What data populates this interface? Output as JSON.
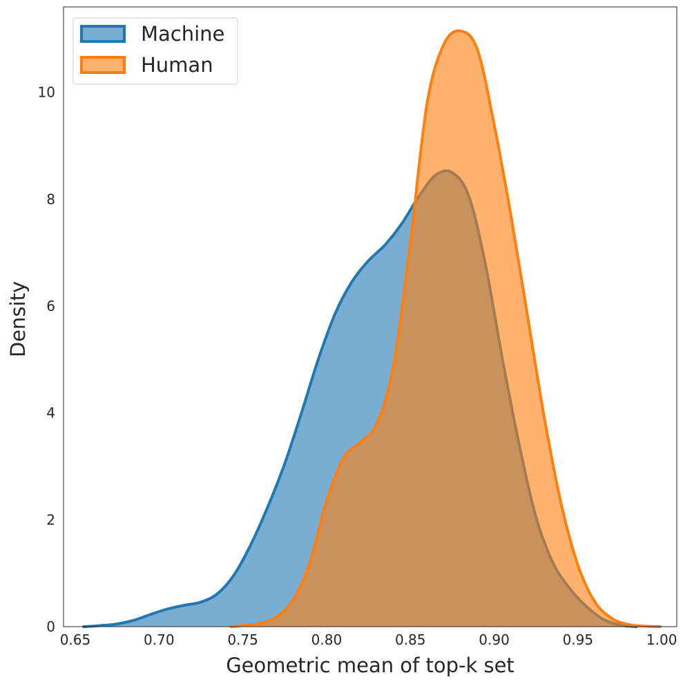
{
  "chart_data": {
    "type": "area",
    "title": "",
    "xlabel": "Geometric mean of top-k set",
    "ylabel": "Density",
    "xlim": [
      0.643,
      1.009
    ],
    "ylim": [
      0,
      11.6
    ],
    "xticks": [
      0.65,
      0.7,
      0.75,
      0.8,
      0.85,
      0.9,
      0.95,
      1.0
    ],
    "xtick_labels": [
      "0.65",
      "0.70",
      "0.75",
      "0.80",
      "0.85",
      "0.90",
      "0.95",
      "1.00"
    ],
    "yticks": [
      0,
      2,
      4,
      6,
      8,
      10
    ],
    "ytick_labels": [
      "0",
      "2",
      "4",
      "6",
      "8",
      "10"
    ],
    "grid": false,
    "legend_position": "top-left",
    "series": [
      {
        "name": "Machine",
        "color": "#1f77b4",
        "fill_opacity": 0.6,
        "x": [
          0.655,
          0.665,
          0.675,
          0.685,
          0.695,
          0.705,
          0.715,
          0.725,
          0.735,
          0.745,
          0.755,
          0.765,
          0.775,
          0.785,
          0.795,
          0.805,
          0.815,
          0.825,
          0.835,
          0.845,
          0.855,
          0.865,
          0.875,
          0.885,
          0.895,
          0.905,
          0.915,
          0.925,
          0.935,
          0.945,
          0.955,
          0.965,
          0.975,
          0.985
        ],
        "values": [
          0.0,
          0.02,
          0.05,
          0.12,
          0.23,
          0.33,
          0.4,
          0.46,
          0.62,
          0.98,
          1.55,
          2.25,
          3.05,
          4.0,
          5.0,
          5.85,
          6.45,
          6.85,
          7.15,
          7.55,
          8.05,
          8.45,
          8.5,
          8.05,
          6.75,
          5.0,
          3.4,
          2.05,
          1.2,
          0.72,
          0.38,
          0.14,
          0.03,
          0.0
        ]
      },
      {
        "name": "Human",
        "color": "#ff7f0e",
        "fill_opacity": 0.6,
        "x": [
          0.743,
          0.75,
          0.76,
          0.77,
          0.78,
          0.79,
          0.8,
          0.81,
          0.82,
          0.83,
          0.84,
          0.85,
          0.86,
          0.87,
          0.88,
          0.89,
          0.9,
          0.91,
          0.92,
          0.93,
          0.94,
          0.95,
          0.96,
          0.97,
          0.98,
          0.99,
          0.999
        ],
        "values": [
          0.0,
          0.02,
          0.06,
          0.18,
          0.5,
          1.2,
          2.35,
          3.15,
          3.45,
          3.8,
          4.9,
          7.2,
          9.8,
          10.9,
          11.15,
          10.8,
          9.4,
          7.7,
          5.8,
          3.9,
          2.3,
          1.15,
          0.47,
          0.16,
          0.04,
          0.01,
          0.0
        ]
      }
    ]
  }
}
